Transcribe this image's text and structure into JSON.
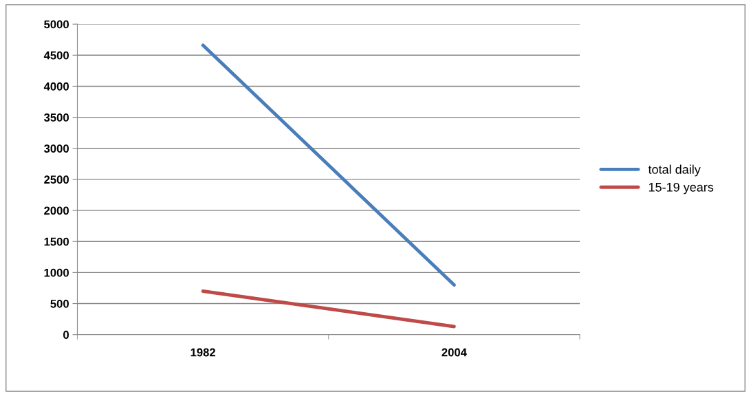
{
  "chart_data": {
    "type": "line",
    "categories": [
      "1982",
      "2004"
    ],
    "series": [
      {
        "name": "total daily",
        "color": "#4a7ebb",
        "values": [
          4660,
          800
        ]
      },
      {
        "name": "15-19 years",
        "color": "#be4b48",
        "values": [
          700,
          130
        ]
      }
    ],
    "ylim": [
      0,
      5000
    ],
    "yticks": [
      0,
      500,
      1000,
      1500,
      2000,
      2500,
      3000,
      3500,
      4000,
      4500,
      5000
    ],
    "grid": "y",
    "legend": "right",
    "marker": "none",
    "line_style": "solid"
  }
}
